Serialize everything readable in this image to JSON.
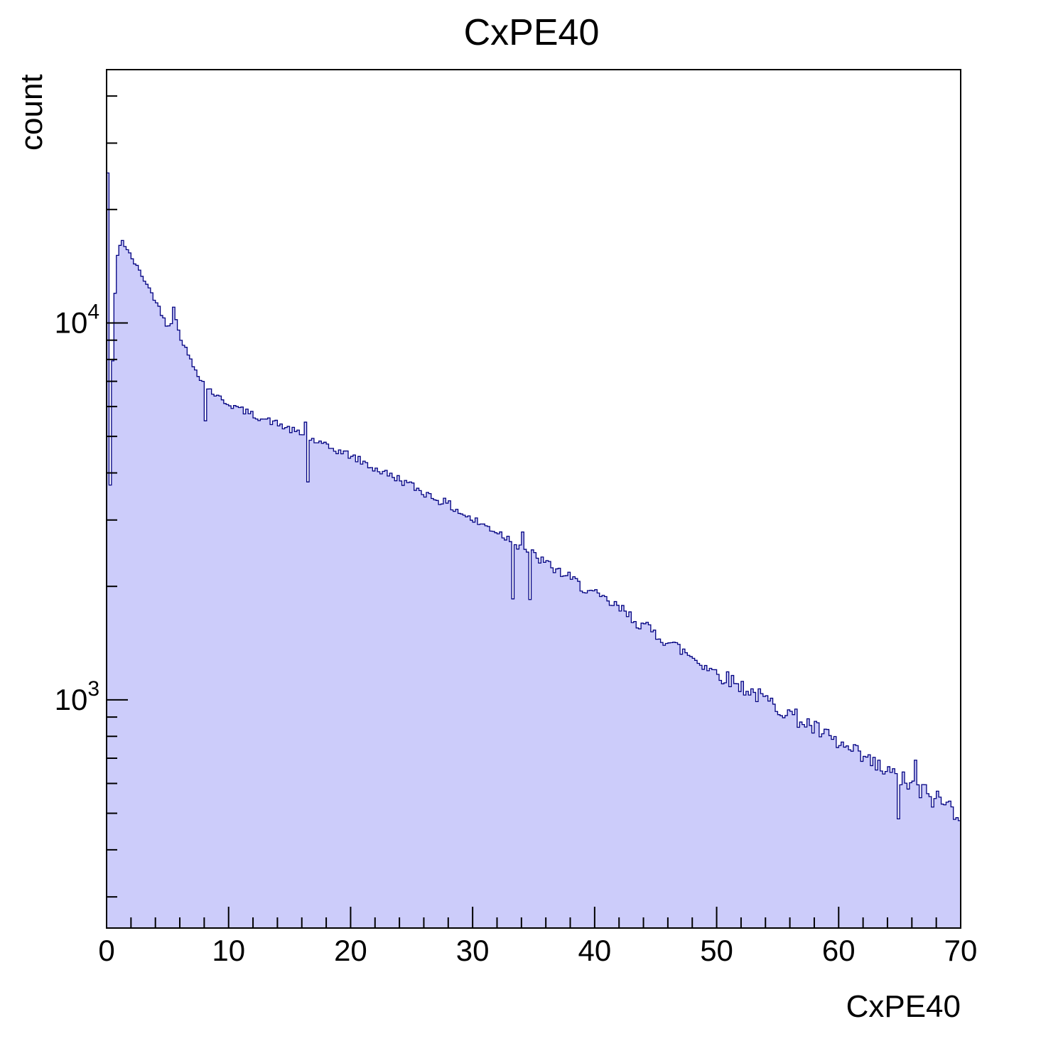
{
  "title": "CxPE40",
  "chart_data": {
    "type": "bar",
    "subtype": "histogram",
    "title": "CxPE40",
    "xlabel": "CxPE40",
    "ylabel": "count",
    "y_scale": "log",
    "xlim": [
      0,
      70
    ],
    "ylim": [
      248,
      47000
    ],
    "x_ticks_major": [
      0,
      10,
      20,
      30,
      40,
      50,
      60,
      70
    ],
    "x_minor_step": 2,
    "y_tick_labels": [
      {
        "base": "10",
        "exp": "3",
        "value": 1000
      },
      {
        "base": "10",
        "exp": "4",
        "value": 10000
      }
    ],
    "bin_width": 0.2,
    "zero_bin_count": 25000,
    "envelope_x": [
      0.2,
      0.4,
      0.8,
      1.2,
      1.6,
      2.0,
      3,
      4,
      5,
      5.6,
      6,
      7,
      8,
      9,
      10,
      12,
      14,
      16,
      18,
      20,
      22,
      24,
      26,
      28,
      30,
      32,
      34,
      36,
      38,
      40,
      42,
      44,
      46,
      48,
      50,
      52,
      54,
      56,
      58,
      60,
      62,
      64,
      66,
      68,
      70
    ],
    "envelope_counts": [
      2100,
      6500,
      14500,
      16800,
      15800,
      15000,
      13200,
      11500,
      9800,
      10400,
      9300,
      7800,
      6900,
      6400,
      6100,
      5700,
      5400,
      5050,
      4700,
      4450,
      4100,
      3850,
      3550,
      3300,
      3000,
      2800,
      2550,
      2300,
      2100,
      1900,
      1750,
      1570,
      1430,
      1300,
      1180,
      1090,
      1000,
      920,
      840,
      760,
      700,
      640,
      590,
      545,
      505
    ],
    "spikes": [
      {
        "x": 5.5,
        "factor": 1.08
      },
      {
        "x": 8.1,
        "factor": 0.8
      },
      {
        "x": 16.3,
        "factor": 1.1
      },
      {
        "x": 16.5,
        "factor": 0.76
      },
      {
        "x": 33.3,
        "factor": 0.72
      },
      {
        "x": 34.1,
        "factor": 1.12
      },
      {
        "x": 34.7,
        "factor": 0.74
      },
      {
        "x": 64.9,
        "factor": 0.82
      },
      {
        "x": 66.3,
        "factor": 1.15
      }
    ],
    "noise_rel_coeff": 1.6,
    "colors": {
      "fill": "#ccccfa",
      "line": "#000080",
      "frame": "#000000",
      "text": "#000000"
    }
  }
}
